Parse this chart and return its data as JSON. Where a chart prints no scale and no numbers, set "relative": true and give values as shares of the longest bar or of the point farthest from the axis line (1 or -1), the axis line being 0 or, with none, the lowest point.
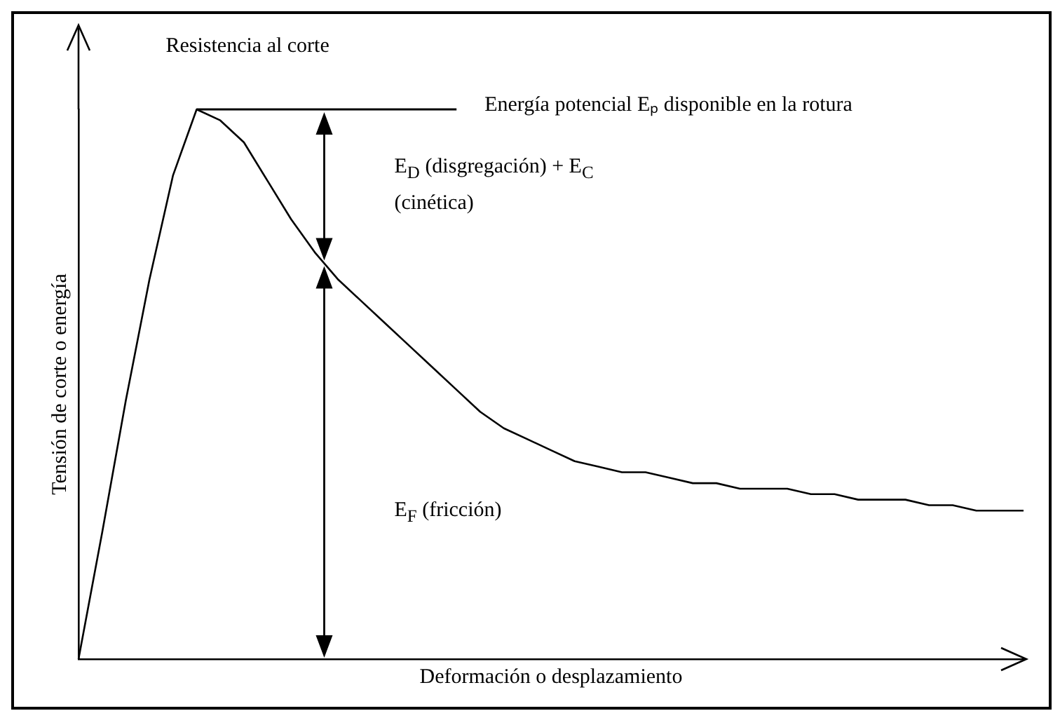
{
  "chart_data": {
    "type": "line",
    "relative": true,
    "xlabel": "Deformación o desplazamiento",
    "ylabel": "Tensión de corte o energía",
    "categories": [
      null,
      null,
      null,
      null,
      null,
      null,
      null,
      null,
      null,
      null,
      null,
      null,
      null,
      null,
      null,
      null,
      null,
      null,
      null,
      null,
      null,
      null,
      null,
      null,
      null,
      null,
      null,
      null,
      null,
      null,
      null,
      null,
      null,
      null,
      null,
      null,
      null,
      null,
      null,
      null,
      null
    ],
    "series": [
      {
        "color": "#000000",
        "values": [
          0,
          0.23,
          0.47,
          0.69,
          0.88,
          1,
          0.98,
          0.94,
          0.87,
          0.8,
          0.74,
          0.69,
          0.65,
          0.61,
          0.57,
          0.53,
          0.49,
          0.45,
          0.42,
          0.4,
          0.38,
          0.36,
          0.35,
          0.34,
          0.34,
          0.33,
          0.32,
          0.32,
          0.31,
          0.31,
          0.31,
          0.3,
          0.3,
          0.29,
          0.29,
          0.29,
          0.28,
          0.28,
          0.27,
          0.27,
          0.27
        ]
      }
    ],
    "annotations": [
      "Resistencia al corte",
      "E$_{D}$ (disgregación) + E$_{C}$ (cinética)",
      "E$_{F}$ (fricción)",
      "Energía potencial Eₚ disponible en la rotura"
    ],
    "marker": "none",
    "line_style": "solid",
    "legend": false,
    "grid": false
  }
}
